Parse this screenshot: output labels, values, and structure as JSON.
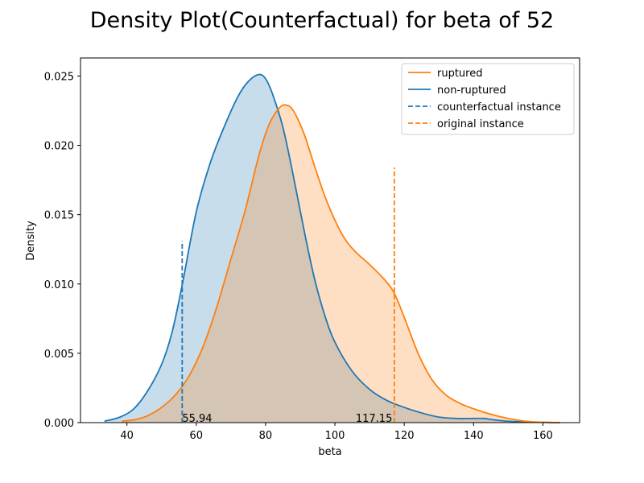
{
  "chart_data": {
    "type": "area",
    "title": "Density Plot(Counterfactual) for beta of 52",
    "xlabel": "beta",
    "ylabel": "Density",
    "xlim": [
      26.6,
      170.6
    ],
    "ylim": [
      0,
      0.0263
    ],
    "xticks": [
      40,
      60,
      80,
      100,
      120,
      140,
      160
    ],
    "yticks": [
      0.0,
      0.005,
      0.01,
      0.015,
      0.02,
      0.025
    ],
    "ytick_labels": [
      "0.000",
      "0.005",
      "0.010",
      "0.015",
      "0.020",
      "0.025"
    ],
    "grid": false,
    "legend_position": "top-right",
    "series": [
      {
        "name": "non-ruptured",
        "color": "#1f77b4",
        "fill_color": "#1f77b4",
        "fill_opacity": 0.25,
        "x": [
          33.5,
          38,
          42,
          46,
          50,
          53,
          56,
          60,
          64,
          68,
          72,
          75,
          78,
          80,
          82,
          85,
          88,
          91,
          94,
          97,
          100,
          105,
          110,
          115,
          120,
          125,
          130,
          135,
          140,
          143,
          146,
          150,
          155,
          160,
          165
        ],
        "y": [
          0.0001,
          0.0004,
          0.001,
          0.0023,
          0.0042,
          0.0065,
          0.01,
          0.0152,
          0.0187,
          0.0213,
          0.0235,
          0.0246,
          0.0251,
          0.0248,
          0.0237,
          0.0213,
          0.0178,
          0.014,
          0.0105,
          0.0078,
          0.0058,
          0.0037,
          0.0024,
          0.0016,
          0.0011,
          0.0007,
          0.0004,
          0.0003,
          0.0003,
          0.0003,
          0.0002,
          0.0001,
          5e-05,
          2e-05,
          0.0
        ]
      },
      {
        "name": "ruptured",
        "color": "#ff7f0e",
        "fill_color": "#ff7f0e",
        "fill_opacity": 0.25,
        "x": [
          38.5,
          42,
          46,
          50,
          54,
          58,
          62,
          66,
          70,
          74,
          78,
          81,
          84,
          86,
          88,
          91,
          94,
          97,
          100,
          103,
          106,
          110,
          114,
          117,
          120,
          124,
          128,
          132,
          136,
          140,
          145,
          150,
          155,
          160,
          165
        ],
        "y": [
          0.0001,
          0.0002,
          0.0005,
          0.0011,
          0.002,
          0.0034,
          0.0055,
          0.0084,
          0.0118,
          0.0152,
          0.0192,
          0.0215,
          0.0227,
          0.0229,
          0.0225,
          0.0209,
          0.0186,
          0.0164,
          0.0146,
          0.0132,
          0.0123,
          0.0114,
          0.0104,
          0.0094,
          0.0076,
          0.005,
          0.0031,
          0.002,
          0.0014,
          0.001,
          0.0006,
          0.0003,
          0.0001,
          3e-05,
          0.0
        ]
      }
    ],
    "vlines": [
      {
        "name": "counterfactual instance",
        "x": 55.94,
        "y_top": 0.0131,
        "color": "#1f77b4",
        "label": "55.94"
      },
      {
        "name": "original instance",
        "x": 117.15,
        "y_top": 0.0184,
        "color": "#ff7f0e",
        "label": "117.15"
      }
    ],
    "legend": [
      {
        "label": "ruptured",
        "color": "#ff7f0e",
        "style": "solid"
      },
      {
        "label": "non-ruptured",
        "color": "#1f77b4",
        "style": "solid"
      },
      {
        "label": "counterfactual instance",
        "color": "#1f77b4",
        "style": "dashed"
      },
      {
        "label": "original instance",
        "color": "#ff7f0e",
        "style": "dashed"
      }
    ]
  }
}
